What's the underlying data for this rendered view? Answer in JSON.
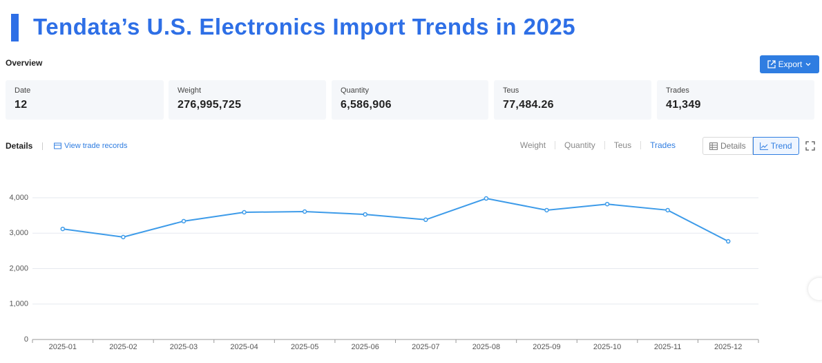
{
  "header": {
    "title": "Tendata’s U.S. Electronics Import Trends in 2025"
  },
  "overview": {
    "label": "Overview",
    "export": "Export",
    "cards": [
      {
        "label": "Date",
        "value": "12"
      },
      {
        "label": "Weight",
        "value": "276,995,725"
      },
      {
        "label": "Quantity",
        "value": "6,586,906"
      },
      {
        "label": "Teus",
        "value": "77,484.26"
      },
      {
        "label": "Trades",
        "value": "41,349"
      }
    ]
  },
  "details": {
    "label": "Details",
    "link": "View trade records",
    "metrics": [
      "Weight",
      "Quantity",
      "Teus",
      "Trades"
    ],
    "active_metric": 3,
    "views": [
      "Details",
      "Trend"
    ],
    "active_view": 1
  },
  "chart_data": {
    "type": "line",
    "categories": [
      "2025-01",
      "2025-02",
      "2025-03",
      "2025-04",
      "2025-05",
      "2025-06",
      "2025-07",
      "2025-08",
      "2025-09",
      "2025-10",
      "2025-11",
      "2025-12"
    ],
    "values": [
      3120,
      2890,
      3340,
      3590,
      3610,
      3530,
      3380,
      3980,
      3650,
      3820,
      3650,
      2770
    ],
    "color": "#3d9be9",
    "ylim": [
      0,
      4000
    ],
    "yticks": [
      0,
      {
        "value": 1000,
        "label": "1,000"
      },
      {
        "value": 2000,
        "label": "2,000"
      },
      {
        "value": 3000,
        "label": "3,000"
      },
      {
        "value": 4000,
        "label": "4,000"
      }
    ],
    "grid": true
  }
}
